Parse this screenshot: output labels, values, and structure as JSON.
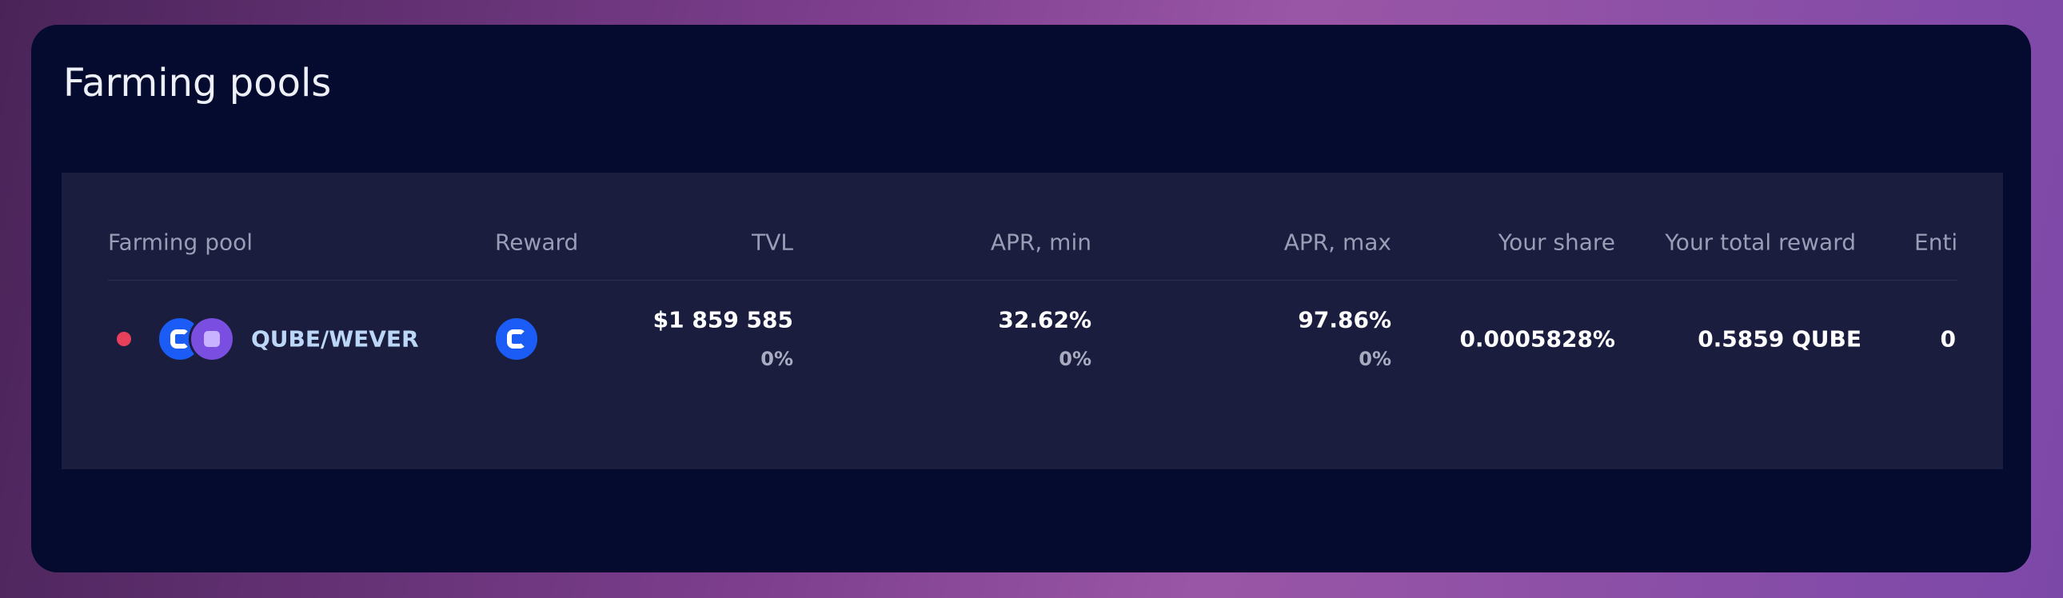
{
  "header": {
    "title": "Farming pools"
  },
  "table": {
    "columns": [
      "Farming pool",
      "Reward",
      "TVL",
      "APR, min",
      "APR, max",
      "Your share",
      "Your total reward",
      "Enti"
    ],
    "rows": [
      {
        "pool": "QUBE/WEVER",
        "tvl": "$1 859 585",
        "tvl_change": "0%",
        "apr_min": "32.62%",
        "apr_min_change": "0%",
        "apr_max": "97.86%",
        "apr_max_change": "0%",
        "share": "0.0005828%",
        "total_reward": "0.5859 QUBE",
        "entitled": "0"
      }
    ]
  }
}
